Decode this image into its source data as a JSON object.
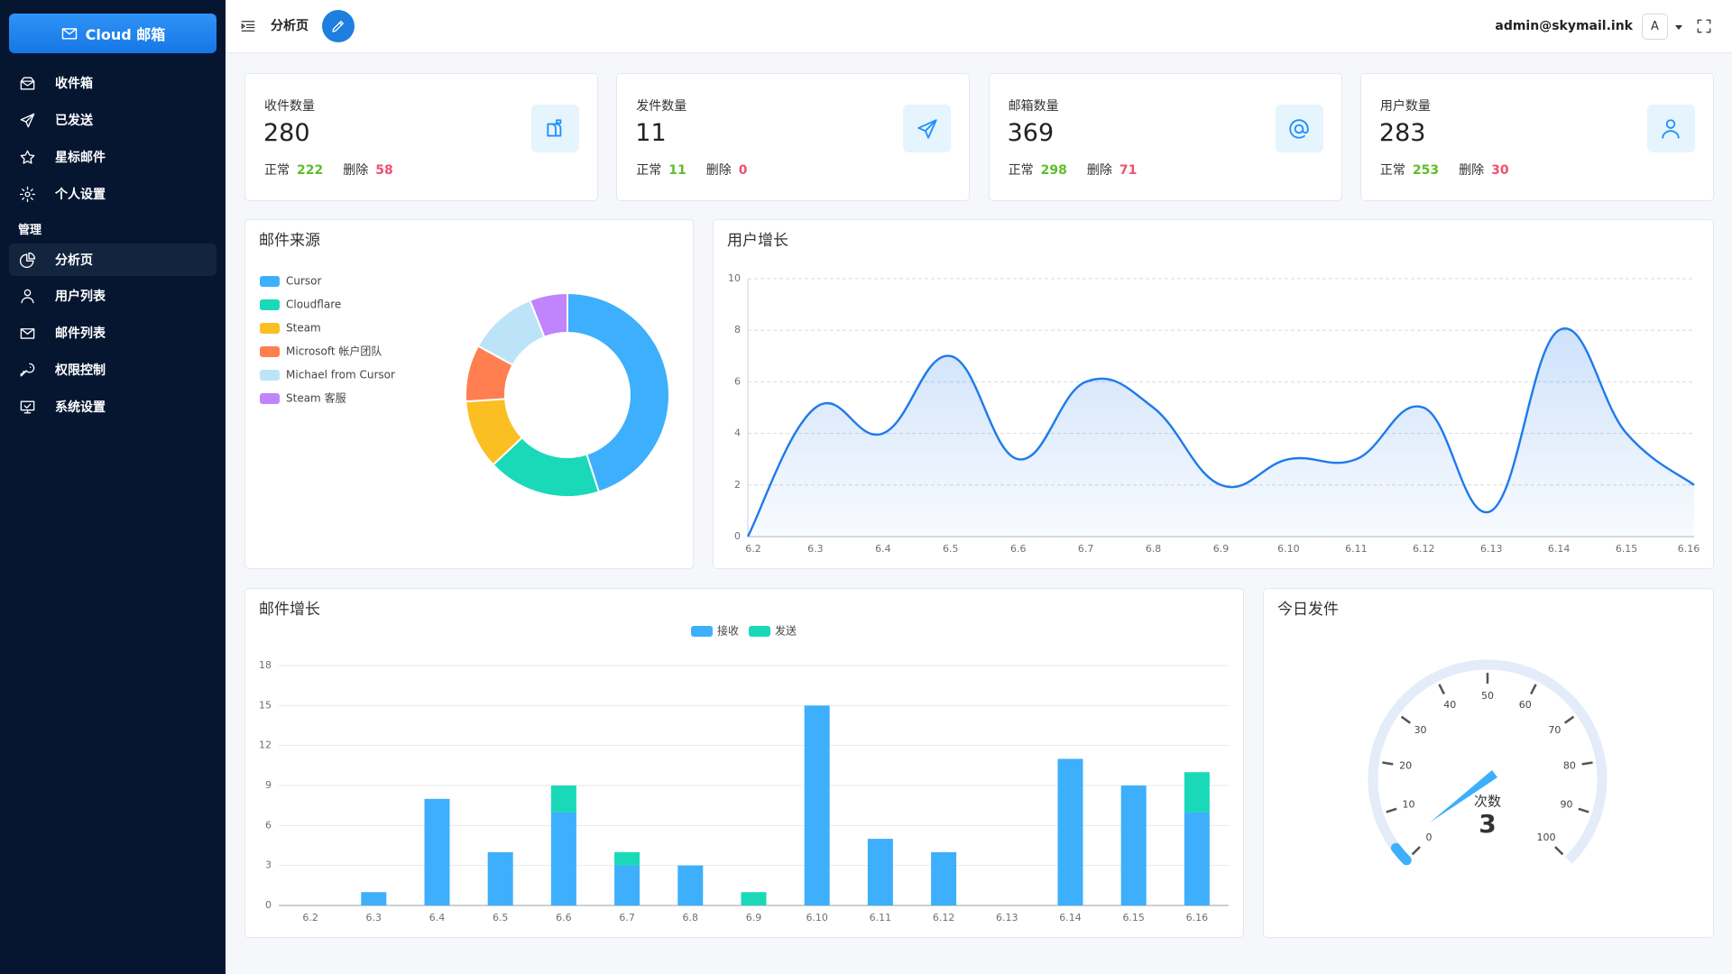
{
  "sidebar": {
    "brand": "Cloud 邮箱",
    "menu": [
      "收件箱",
      "已发送",
      "星标邮件",
      "个人设置"
    ],
    "section": "管理",
    "admin_menu": [
      "分析页",
      "用户列表",
      "邮件列表",
      "权限控制",
      "系统设置"
    ]
  },
  "header": {
    "title": "分析页",
    "user": "admin@skymail.ink",
    "avatar": "A"
  },
  "stats": [
    {
      "label": "收件数量",
      "total": 280,
      "normal_label": "正常",
      "normal": 222,
      "deleted_label": "删除",
      "deleted": 58
    },
    {
      "label": "发件数量",
      "total": 11,
      "normal_label": "正常",
      "normal": 11,
      "deleted_label": "删除",
      "deleted": 0
    },
    {
      "label": "邮箱数量",
      "total": 369,
      "normal_label": "正常",
      "normal": 298,
      "deleted_label": "删除",
      "deleted": 71
    },
    {
      "label": "用户数量",
      "total": 283,
      "normal_label": "正常",
      "normal": 253,
      "deleted_label": "删除",
      "deleted": 30
    }
  ],
  "chart_data": [
    {
      "type": "pie",
      "title": "邮件来源",
      "categories": [
        "Cursor",
        "Cloudflare",
        "Steam",
        "Microsoft 帐户团队",
        "Michael from Cursor",
        "Steam 客服"
      ],
      "values": [
        45,
        18,
        11,
        9,
        11,
        6
      ],
      "colors": [
        "#3eaffc",
        "#1ad9b8",
        "#fbbf24",
        "#ff7f50",
        "#bde3f8",
        "#c084fc"
      ]
    },
    {
      "type": "line",
      "title": "用户增长",
      "x": [
        "6.2",
        "6.3",
        "6.4",
        "6.5",
        "6.6",
        "6.7",
        "6.8",
        "6.9",
        "6.10",
        "6.11",
        "6.12",
        "6.13",
        "6.14",
        "6.15",
        "6.16"
      ],
      "values": [
        0,
        5,
        4,
        7,
        3,
        6,
        5,
        2,
        3,
        3,
        5,
        1,
        8,
        4,
        2
      ],
      "color": "#1f7aec",
      "ylim": [
        0,
        10
      ],
      "yticks": [
        0,
        2,
        4,
        6,
        8,
        10
      ],
      "grid": true
    },
    {
      "type": "bar",
      "title": "邮件增长",
      "stacked": true,
      "categories": [
        "6.2",
        "6.3",
        "6.4",
        "6.5",
        "6.6",
        "6.7",
        "6.8",
        "6.9",
        "6.10",
        "6.11",
        "6.12",
        "6.13",
        "6.14",
        "6.15",
        "6.16"
      ],
      "series": [
        {
          "name": "接收",
          "color": "#3eaffc",
          "values": [
            0,
            1,
            8,
            4,
            7,
            3,
            3,
            0,
            15,
            5,
            4,
            0,
            11,
            9,
            7
          ]
        },
        {
          "name": "发送",
          "color": "#1ad9b8",
          "values": [
            0,
            0,
            0,
            0,
            2,
            1,
            0,
            1,
            0,
            0,
            0,
            0,
            0,
            0,
            3
          ]
        }
      ],
      "ylim": [
        0,
        18
      ],
      "yticks": [
        0,
        3,
        6,
        9,
        12,
        15,
        18
      ],
      "grid": true
    },
    {
      "type": "gauge",
      "title": "今日发件",
      "label": "次数",
      "value": 3,
      "color": "#3eaffc",
      "ylim": [
        0,
        100
      ],
      "yticks": [
        0,
        10,
        20,
        30,
        40,
        50,
        60,
        70,
        80,
        90,
        100
      ]
    }
  ]
}
